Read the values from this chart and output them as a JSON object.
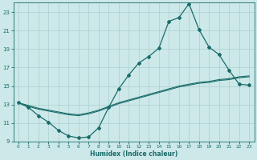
{
  "xlabel": "Humidex (Indice chaleur)",
  "background_color": "#cce8e8",
  "grid_color": "#aacfcf",
  "line_color": "#1a6b6b",
  "xlim": [
    -0.5,
    23.5
  ],
  "ylim": [
    9,
    24
  ],
  "xticks": [
    0,
    1,
    2,
    3,
    4,
    5,
    6,
    7,
    8,
    9,
    10,
    11,
    12,
    13,
    14,
    15,
    16,
    17,
    18,
    19,
    20,
    21,
    22,
    23
  ],
  "yticks": [
    9,
    11,
    13,
    15,
    17,
    19,
    21,
    23
  ],
  "line1_x": [
    0,
    1,
    2,
    3,
    4,
    5,
    6,
    7,
    8,
    9,
    10,
    11,
    12,
    13,
    14,
    15,
    16,
    17,
    18,
    19,
    20,
    21,
    22,
    23
  ],
  "line1_y": [
    13.2,
    12.7,
    11.8,
    11.1,
    10.2,
    9.6,
    9.4,
    9.5,
    10.5,
    12.7,
    14.7,
    16.2,
    17.5,
    18.2,
    19.1,
    22.0,
    22.4,
    23.9,
    21.1,
    19.2,
    18.4,
    16.7,
    15.2,
    15.1
  ],
  "line2_x": [
    0,
    1,
    2,
    3,
    4,
    5,
    6,
    7,
    8,
    9,
    10,
    11,
    12,
    13,
    14,
    15,
    16,
    17,
    18,
    19,
    20,
    21,
    22,
    23
  ],
  "line2_y": [
    13.2,
    12.9,
    12.6,
    12.4,
    12.2,
    12.0,
    11.9,
    12.1,
    12.4,
    12.8,
    13.2,
    13.5,
    13.8,
    14.1,
    14.4,
    14.7,
    15.0,
    15.2,
    15.4,
    15.5,
    15.7,
    15.8,
    16.0,
    16.1
  ],
  "line3_x": [
    0,
    1,
    2,
    3,
    4,
    5,
    6,
    7,
    8,
    9,
    10,
    11,
    12,
    13,
    14,
    15,
    16,
    17,
    18,
    19,
    20,
    21,
    22,
    23
  ],
  "line3_y": [
    13.2,
    12.8,
    12.5,
    12.3,
    12.1,
    11.9,
    11.8,
    12.0,
    12.3,
    12.7,
    13.1,
    13.4,
    13.7,
    14.0,
    14.3,
    14.6,
    14.9,
    15.1,
    15.3,
    15.4,
    15.6,
    15.7,
    15.9,
    16.0
  ]
}
